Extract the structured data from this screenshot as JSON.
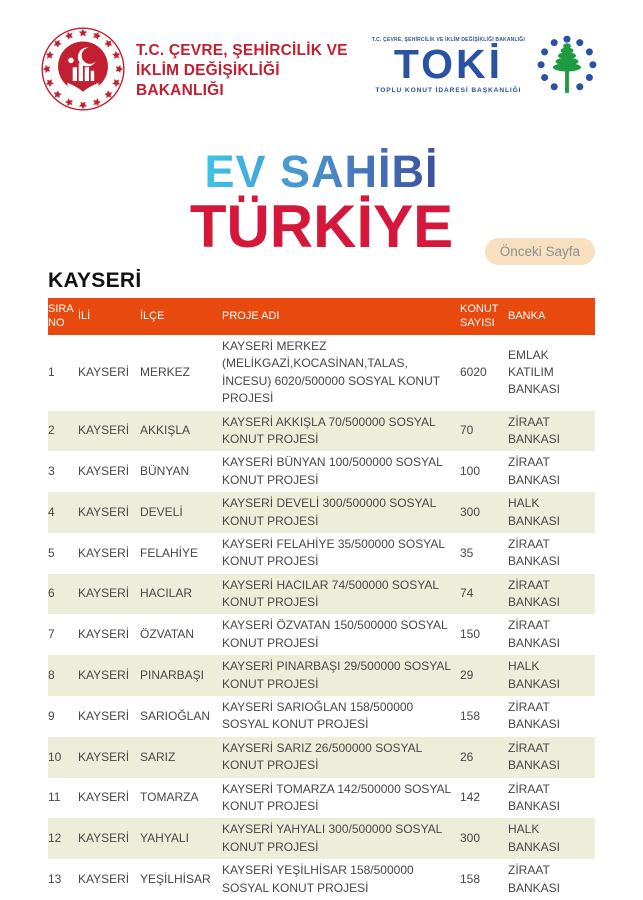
{
  "header": {
    "ministry": {
      "name_line1": "T.C. ÇEVRE, ŞEHİRCİLİK VE",
      "name_line2": "İKLİM DEĞİŞİKLİĞİ BAKANLIĞI"
    },
    "toki": {
      "small_top": "T.C. ÇEVRE, ŞEHİRCİLİK VE İKLİM DEĞİŞİKLİĞİ BAKANLIĞI",
      "name": "TOKİ",
      "subtitle": "TOPLU KONUT İDARESİ BAŞKANLIĞI"
    }
  },
  "hero": {
    "title_line1": "EV SAHİBİ",
    "title_line2": "TÜRKİYE",
    "back_button_label": "Önceki Sayfa"
  },
  "section": {
    "title": "KAYSERİ"
  },
  "table": {
    "columns": [
      "SIRA NO",
      "İLİ",
      "İLÇE",
      "PROJE ADI",
      "KONUT SAYISI",
      "BANKA"
    ],
    "rows": [
      {
        "no": "1",
        "ili": "KAYSERİ",
        "ilce": "MERKEZ",
        "proje": "KAYSERİ MERKEZ (MELİKGAZİ,KOCASİNAN,TALAS, İNCESU) 6020/500000 SOSYAL KONUT PROJESİ",
        "konut": "6020",
        "banka": "EMLAK KATILIM BANKASI"
      },
      {
        "no": "2",
        "ili": "KAYSERİ",
        "ilce": "AKKIŞLA",
        "proje": "KAYSERİ AKKIŞLA 70/500000 SOSYAL KONUT PROJESİ",
        "konut": "70",
        "banka": "ZİRAAT BANKASI"
      },
      {
        "no": "3",
        "ili": "KAYSERİ",
        "ilce": "BÜNYAN",
        "proje": "KAYSERİ BÜNYAN 100/500000 SOSYAL KONUT PROJESİ",
        "konut": "100",
        "banka": "ZİRAAT BANKASI"
      },
      {
        "no": "4",
        "ili": "KAYSERİ",
        "ilce": "DEVELİ",
        "proje": "KAYSERİ DEVELİ 300/500000 SOSYAL KONUT PROJESİ",
        "konut": "300",
        "banka": "HALK BANKASI"
      },
      {
        "no": "5",
        "ili": "KAYSERİ",
        "ilce": "FELAHİYE",
        "proje": "KAYSERİ FELAHİYE 35/500000 SOSYAL KONUT PROJESİ",
        "konut": "35",
        "banka": "ZİRAAT BANKASI"
      },
      {
        "no": "6",
        "ili": "KAYSERİ",
        "ilce": "HACILAR",
        "proje": "KAYSERİ HACILAR 74/500000 SOSYAL KONUT PROJESİ",
        "konut": "74",
        "banka": "ZİRAAT BANKASI"
      },
      {
        "no": "7",
        "ili": "KAYSERİ",
        "ilce": "ÖZVATAN",
        "proje": "KAYSERİ ÖZVATAN 150/500000 SOSYAL KONUT PROJESİ",
        "konut": "150",
        "banka": "ZİRAAT BANKASI"
      },
      {
        "no": "8",
        "ili": "KAYSERİ",
        "ilce": "PINARBAŞI",
        "proje": "KAYSERİ PINARBAŞI 29/500000 SOSYAL KONUT PROJESİ",
        "konut": "29",
        "banka": "HALK BANKASI"
      },
      {
        "no": "9",
        "ili": "KAYSERİ",
        "ilce": "SARIOĞLAN",
        "proje": "KAYSERİ SARIOĞLAN 158/500000 SOSYAL KONUT PROJESİ",
        "konut": "158",
        "banka": "ZİRAAT BANKASI"
      },
      {
        "no": "10",
        "ili": "KAYSERİ",
        "ilce": "SARIZ",
        "proje": "KAYSERİ SARIZ 26/500000 SOSYAL KONUT PROJESİ",
        "konut": "26",
        "banka": "ZİRAAT BANKASI"
      },
      {
        "no": "11",
        "ili": "KAYSERİ",
        "ilce": "TOMARZA",
        "proje": "KAYSERİ TOMARZA 142/500000 SOSYAL KONUT PROJESİ",
        "konut": "142",
        "banka": "ZİRAAT BANKASI"
      },
      {
        "no": "12",
        "ili": "KAYSERİ",
        "ilce": "YAHYALI",
        "proje": "KAYSERİ YAHYALI 300/500000 SOSYAL KONUT PROJESİ",
        "konut": "300",
        "banka": "HALK BANKASI"
      },
      {
        "no": "13",
        "ili": "KAYSERİ",
        "ilce": "YEŞİLHİSAR",
        "proje": "KAYSERİ YEŞİLHİSAR 158/500000 SOSYAL KONUT PROJESİ",
        "konut": "158",
        "banka": "ZİRAAT BANKASI"
      }
    ]
  },
  "colors": {
    "table_header_bg": "#e8490e",
    "table_alt_row_bg": "#edeeda",
    "ministry_red": "#c22031",
    "toki_blue": "#2b51a3",
    "tree_green": "#1f9b3f",
    "title_gradient_start": "#3ec2e9",
    "title_gradient_end": "#3b4f9f",
    "title_red": "#d6173c",
    "back_button_bg": "#f7dfc0",
    "back_button_text": "#8f8f8f"
  }
}
